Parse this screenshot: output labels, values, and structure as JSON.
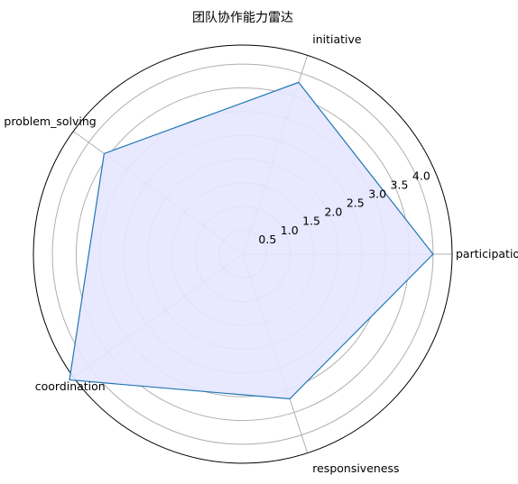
{
  "chart_data": {
    "type": "radar",
    "title": "团队协作能力雷达",
    "axes": [
      "participation",
      "initiative",
      "problem_solving",
      "coordination",
      "responsiveness"
    ],
    "values": [
      4.0,
      3.8,
      3.6,
      4.5,
      3.2
    ],
    "rlim": [
      0,
      4.4
    ],
    "rticks": [
      0.5,
      1.0,
      1.5,
      2.0,
      2.5,
      3.0,
      3.5,
      4.0
    ],
    "rtick_labels": [
      "0.5",
      "1.0",
      "1.5",
      "2.0",
      "2.5",
      "3.0",
      "3.5",
      "4.0"
    ],
    "grid": true,
    "colors": {
      "line": "#1f77b4",
      "fill": "#e5e5ff",
      "grid": "#b0b0b0",
      "outer": "#000000"
    }
  }
}
